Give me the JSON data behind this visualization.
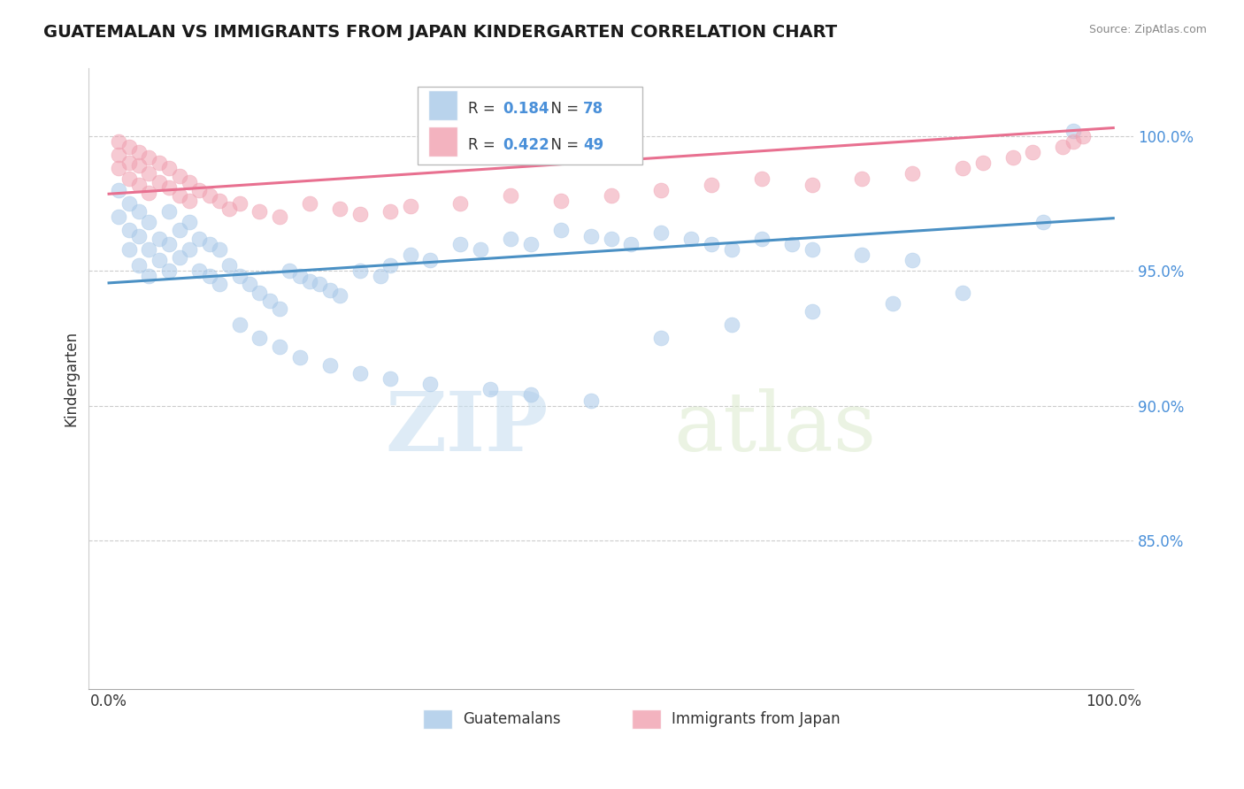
{
  "title": "GUATEMALAN VS IMMIGRANTS FROM JAPAN KINDERGARTEN CORRELATION CHART",
  "source": "Source: ZipAtlas.com",
  "ylabel": "Kindergarten",
  "ytick_labels": [
    "85.0%",
    "90.0%",
    "95.0%",
    "100.0%"
  ],
  "ytick_values": [
    0.85,
    0.9,
    0.95,
    1.0
  ],
  "ylim": [
    0.795,
    1.025
  ],
  "xlim": [
    -0.02,
    1.02
  ],
  "legend1_label": "Guatemalans",
  "legend2_label": "Immigrants from Japan",
  "R_blue": "0.184",
  "N_blue": "78",
  "R_pink": "0.422",
  "N_pink": "49",
  "blue_color": "#a8c8e8",
  "pink_color": "#f0a0b0",
  "trendline_blue": "#4a90c4",
  "trendline_pink": "#e87090",
  "blue_trend_x": [
    0.0,
    1.0
  ],
  "blue_trend_y": [
    0.9455,
    0.9695
  ],
  "pink_trend_x": [
    0.0,
    1.0
  ],
  "pink_trend_y": [
    0.9785,
    1.003
  ],
  "blue_scatter_x": [
    0.01,
    0.01,
    0.02,
    0.02,
    0.02,
    0.03,
    0.03,
    0.03,
    0.04,
    0.04,
    0.04,
    0.05,
    0.05,
    0.06,
    0.06,
    0.06,
    0.07,
    0.07,
    0.08,
    0.08,
    0.09,
    0.09,
    0.1,
    0.1,
    0.11,
    0.11,
    0.12,
    0.13,
    0.14,
    0.15,
    0.16,
    0.17,
    0.18,
    0.19,
    0.2,
    0.21,
    0.22,
    0.23,
    0.25,
    0.27,
    0.28,
    0.3,
    0.32,
    0.35,
    0.37,
    0.4,
    0.42,
    0.45,
    0.48,
    0.5,
    0.52,
    0.55,
    0.58,
    0.6,
    0.62,
    0.65,
    0.68,
    0.7,
    0.75,
    0.8,
    0.13,
    0.15,
    0.17,
    0.19,
    0.22,
    0.25,
    0.28,
    0.32,
    0.38,
    0.42,
    0.48,
    0.55,
    0.62,
    0.7,
    0.78,
    0.85,
    0.93,
    0.96
  ],
  "blue_scatter_y": [
    0.98,
    0.97,
    0.975,
    0.965,
    0.958,
    0.972,
    0.963,
    0.952,
    0.968,
    0.958,
    0.948,
    0.962,
    0.954,
    0.972,
    0.96,
    0.95,
    0.965,
    0.955,
    0.968,
    0.958,
    0.962,
    0.95,
    0.96,
    0.948,
    0.958,
    0.945,
    0.952,
    0.948,
    0.945,
    0.942,
    0.939,
    0.936,
    0.95,
    0.948,
    0.946,
    0.945,
    0.943,
    0.941,
    0.95,
    0.948,
    0.952,
    0.956,
    0.954,
    0.96,
    0.958,
    0.962,
    0.96,
    0.965,
    0.963,
    0.962,
    0.96,
    0.964,
    0.962,
    0.96,
    0.958,
    0.962,
    0.96,
    0.958,
    0.956,
    0.954,
    0.93,
    0.925,
    0.922,
    0.918,
    0.915,
    0.912,
    0.91,
    0.908,
    0.906,
    0.904,
    0.902,
    0.925,
    0.93,
    0.935,
    0.938,
    0.942,
    0.968,
    1.002
  ],
  "pink_scatter_x": [
    0.01,
    0.01,
    0.01,
    0.02,
    0.02,
    0.02,
    0.03,
    0.03,
    0.03,
    0.04,
    0.04,
    0.04,
    0.05,
    0.05,
    0.06,
    0.06,
    0.07,
    0.07,
    0.08,
    0.08,
    0.09,
    0.1,
    0.11,
    0.12,
    0.13,
    0.15,
    0.17,
    0.2,
    0.23,
    0.25,
    0.28,
    0.3,
    0.35,
    0.4,
    0.45,
    0.5,
    0.55,
    0.6,
    0.65,
    0.7,
    0.75,
    0.8,
    0.85,
    0.87,
    0.9,
    0.92,
    0.95,
    0.96,
    0.97
  ],
  "pink_scatter_y": [
    0.998,
    0.993,
    0.988,
    0.996,
    0.99,
    0.984,
    0.994,
    0.989,
    0.982,
    0.992,
    0.986,
    0.979,
    0.99,
    0.983,
    0.988,
    0.981,
    0.985,
    0.978,
    0.983,
    0.976,
    0.98,
    0.978,
    0.976,
    0.973,
    0.975,
    0.972,
    0.97,
    0.975,
    0.973,
    0.971,
    0.972,
    0.974,
    0.975,
    0.978,
    0.976,
    0.978,
    0.98,
    0.982,
    0.984,
    0.982,
    0.984,
    0.986,
    0.988,
    0.99,
    0.992,
    0.994,
    0.996,
    0.998,
    1.0
  ],
  "grid_color": "#cccccc",
  "watermark_zip": "ZIP",
  "watermark_atlas": "atlas",
  "background_color": "#ffffff"
}
